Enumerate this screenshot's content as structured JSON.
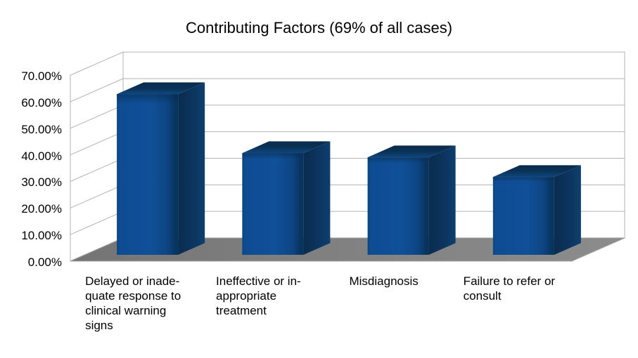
{
  "chart_data": {
    "type": "bar",
    "style": "3d",
    "title": "Contributing Factors (69% of all cases)",
    "categories": [
      "Delayed or inadequate response to clinical warning signs",
      "Ineffective or inappropriate treatment",
      "Misdiagnosis",
      "Failure to refer or consult"
    ],
    "categories_wrapped": [
      [
        "Delayed or inade-",
        "quate response to",
        "clinical warning",
        "signs"
      ],
      [
        "Ineffective or in-",
        "appropriate",
        "treatment"
      ],
      [
        "Misdiagnosis"
      ],
      [
        "Failure to refer or",
        "consult"
      ]
    ],
    "values": [
      60.5,
      38.3,
      36.7,
      29.3
    ],
    "unit": "%",
    "ylim": [
      0,
      70
    ],
    "y_tick_step": 10,
    "y_tick_labels": [
      "70.00%",
      "60.00%",
      "50.00%",
      "40.00%",
      "30.00%",
      "20.00%",
      "10.00%",
      "0.00%"
    ],
    "grid": true,
    "legend": "none",
    "colors": {
      "text": "#000000",
      "wall": "#ffffff",
      "gridline": "#b3b3b3",
      "floor_edge": "#9e9e9e",
      "floor_left": "#747474",
      "floor_mid": "#808080",
      "floor_right": "#8c8c8c",
      "bar_front_edge_left": "#0b4680",
      "bar_front": "#0e4c93",
      "bar_front_light": "#105098",
      "bar_front_dark": "#0d4583",
      "bar_front_edge_right": "#083560",
      "bar_bevel": "#07294b",
      "bar_top_front": "#0e477f",
      "bar_top": "#0a3156",
      "bar_top_back": "#092b4a",
      "bar_side_front": "#0a2c4e",
      "bar_side_mid": "#0c3560",
      "bar_side_back": "#0e3f6e"
    }
  }
}
